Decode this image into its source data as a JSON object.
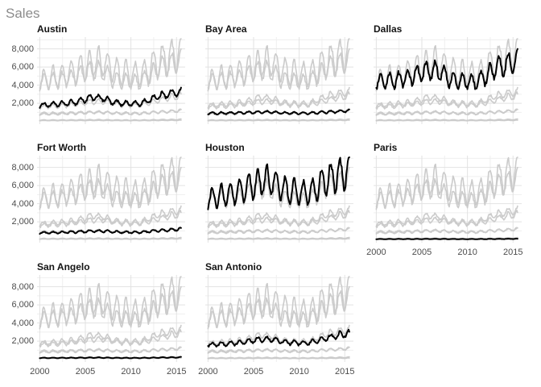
{
  "chart_data": {
    "type": "line",
    "title": "Sales",
    "facets": [
      "Austin",
      "Bay Area",
      "Dallas",
      "Fort Worth",
      "Houston",
      "Paris",
      "San Angelo",
      "San Antonio"
    ],
    "x": {
      "ticks": [
        2000,
        2005,
        2010,
        2015
      ],
      "domain": [
        1999.7,
        2015.95
      ],
      "minor_ticks": [
        2002.5,
        2007.5,
        2012.5
      ],
      "data_start": 2000.0,
      "data_end": 2015.5,
      "points_per_year": 12
    },
    "y": {
      "ticks": [
        2000,
        4000,
        6000,
        8000
      ],
      "tick_labels": [
        "2,000",
        "4,000",
        "6,000",
        "8,000"
      ],
      "minor_ticks": [
        1000,
        3000,
        5000,
        7000,
        9000
      ],
      "domain": [
        -300,
        9300
      ]
    },
    "series": [
      {
        "name": "Austin",
        "yearly_values": [
          1800,
          1850,
          1900,
          2000,
          2150,
          2450,
          2650,
          2550,
          2100,
          2000,
          1980,
          1950,
          2350,
          2800,
          3000,
          3200
        ],
        "seasonal_amplitude": 0.13
      },
      {
        "name": "Bay Area",
        "yearly_values": [
          900,
          910,
          920,
          940,
          960,
          1000,
          1040,
          1020,
          950,
          920,
          910,
          900,
          970,
          1030,
          1080,
          1150
        ],
        "seasonal_amplitude": 0.12
      },
      {
        "name": "Dallas",
        "yearly_values": [
          4300,
          4400,
          4500,
          4700,
          5000,
          5400,
          5600,
          5450,
          4700,
          4400,
          4450,
          4300,
          5000,
          5800,
          6200,
          6700
        ],
        "seasonal_amplitude": 0.18
      },
      {
        "name": "Fort Worth",
        "yearly_values": [
          780,
          800,
          820,
          850,
          890,
          940,
          990,
          970,
          890,
          860,
          850,
          840,
          940,
          1040,
          1090,
          1200
        ],
        "seasonal_amplitude": 0.13
      },
      {
        "name": "Houston",
        "yearly_values": [
          4500,
          4800,
          5000,
          5250,
          5600,
          6100,
          6600,
          6500,
          5700,
          5400,
          5300,
          5100,
          5900,
          6700,
          7100,
          7500
        ],
        "seasonal_amplitude": 0.24
      },
      {
        "name": "Paris",
        "yearly_values": [
          95,
          96,
          97,
          99,
          100,
          104,
          108,
          106,
          98,
          95,
          93,
          92,
          100,
          108,
          114,
          120
        ],
        "seasonal_amplitude": 0.18
      },
      {
        "name": "San Angelo",
        "yearly_values": [
          150,
          152,
          155,
          160,
          166,
          176,
          186,
          180,
          160,
          154,
          150,
          148,
          165,
          185,
          200,
          215
        ],
        "seasonal_amplitude": 0.22
      },
      {
        "name": "San Antonio",
        "yearly_values": [
          1600,
          1650,
          1700,
          1780,
          1880,
          2050,
          2250,
          2200,
          1950,
          1850,
          1820,
          1800,
          2050,
          2350,
          2550,
          2800
        ],
        "seasonal_amplitude": 0.13
      }
    ],
    "style": {
      "highlight_color": "#000000",
      "other_series_color": "#cbcbcb",
      "grid_major_color": "#e2e2e2",
      "grid_minor_color": "#efefef",
      "axis_text_color": "#4d4d4d",
      "facet_title_color": "#141414",
      "title_color": "#8c8c8c",
      "background_color": "#ffffff"
    },
    "legend": "none",
    "note": "each panel highlights its own city in black over all cities in gray"
  }
}
